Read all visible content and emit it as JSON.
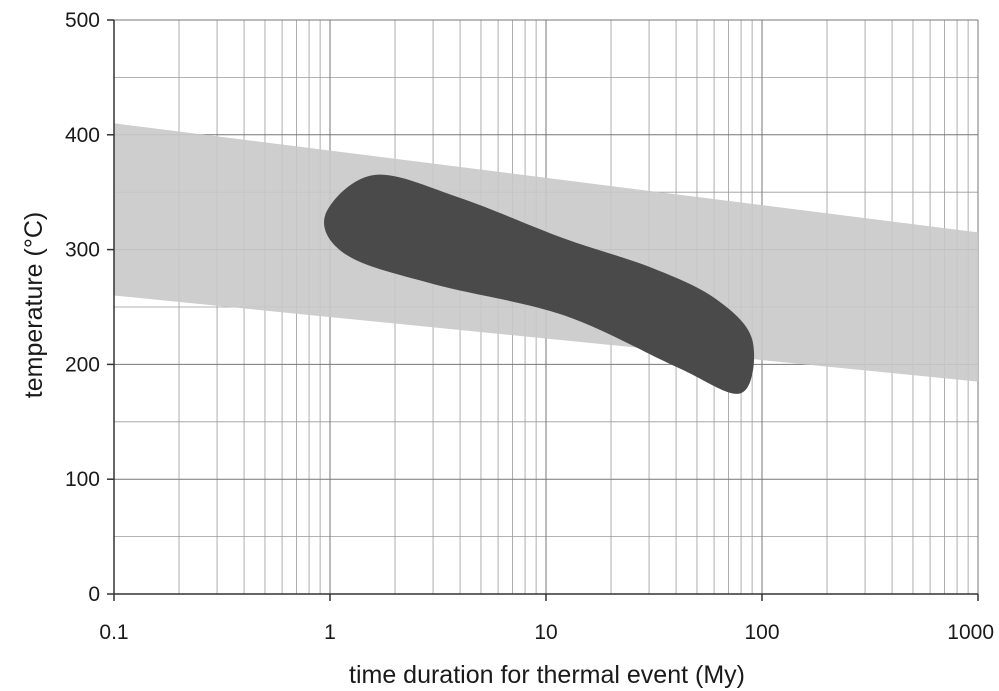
{
  "chart_data": {
    "type": "scatter",
    "title": "",
    "xlabel": "time duration for thermal event (My)",
    "ylabel": "temperature (°C)",
    "x_scale": "log",
    "xlim": [
      0.1,
      1000
    ],
    "ylim": [
      0,
      500
    ],
    "grid": true,
    "x_ticks": [
      0.1,
      1,
      10,
      100,
      1000
    ],
    "x_tick_labels": [
      "0.1",
      "1",
      "10",
      "100",
      "1000"
    ],
    "y_ticks": [
      0,
      100,
      200,
      300,
      400,
      500
    ],
    "y_tick_labels": [
      "0",
      "100",
      "200",
      "300",
      "400",
      "500"
    ],
    "colors": {
      "band": "#c9c9c9",
      "region": "#4a4a4a",
      "grid": "#9a9a9a",
      "axis": "#333333"
    },
    "regions": [
      {
        "kind": "band",
        "upper": [
          {
            "x": 0.1,
            "y": 410
          },
          {
            "x": 1000,
            "y": 315
          }
        ],
        "lower": [
          {
            "x": 0.1,
            "y": 260
          },
          {
            "x": 1000,
            "y": 185
          }
        ]
      },
      {
        "kind": "blob",
        "outline": [
          {
            "x": 1.6,
            "y": 365
          },
          {
            "x": 4,
            "y": 345
          },
          {
            "x": 12,
            "y": 310
          },
          {
            "x": 30,
            "y": 285
          },
          {
            "x": 60,
            "y": 258
          },
          {
            "x": 90,
            "y": 222
          },
          {
            "x": 80,
            "y": 175
          },
          {
            "x": 40,
            "y": 198
          },
          {
            "x": 12,
            "y": 243
          },
          {
            "x": 3,
            "y": 270
          },
          {
            "x": 1.2,
            "y": 295
          },
          {
            "x": 0.95,
            "y": 330
          }
        ]
      }
    ]
  }
}
